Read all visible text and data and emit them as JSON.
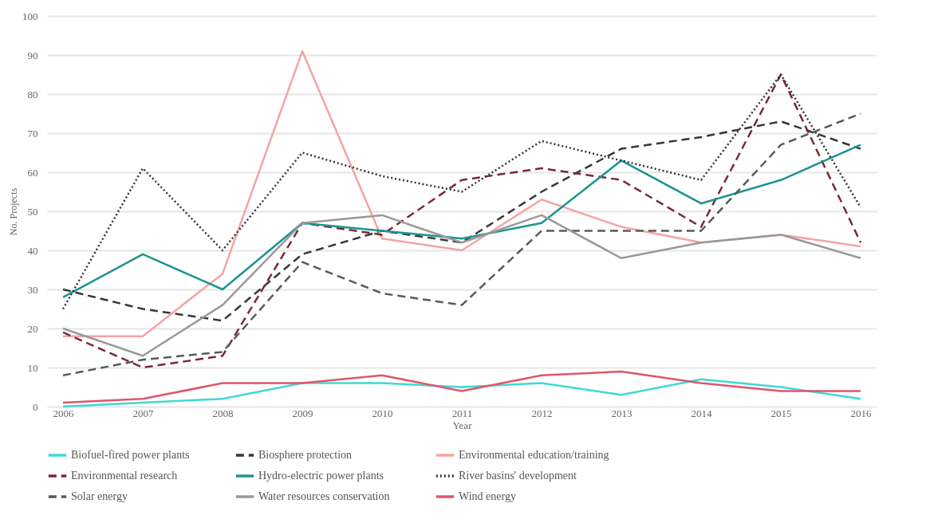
{
  "chart_data": {
    "type": "line",
    "xlabel": "Year",
    "ylabel": "No. Projects",
    "categories": [
      "2006",
      "2007",
      "2008",
      "2009",
      "2010",
      "2011",
      "2012",
      "2013",
      "2014",
      "2015",
      "2016"
    ],
    "ylim": [
      0,
      100
    ],
    "yticks": [
      0,
      10,
      20,
      30,
      40,
      50,
      60,
      70,
      80,
      90,
      100
    ],
    "grid": "y",
    "legend": "bottom",
    "marker": "none",
    "series": [
      {
        "name": "Biofuel-fired power plants",
        "color": "#3fd9d4",
        "line_style": "solid",
        "values": [
          0,
          1,
          2,
          6,
          6,
          5,
          6,
          3,
          7,
          5,
          2
        ]
      },
      {
        "name": "Biosphere protection",
        "color": "#383838",
        "line_style": "dashed",
        "values": [
          30,
          25,
          22,
          39,
          45,
          42,
          55,
          66,
          69,
          73,
          66
        ]
      },
      {
        "name": "Environmental education/training",
        "color": "#f4a3a6",
        "line_style": "solid",
        "values": [
          18,
          18,
          34,
          91,
          43,
          40,
          53,
          46,
          42,
          44,
          41
        ]
      },
      {
        "name": "Environmental research",
        "color": "#7a2a38",
        "line_style": "dashed",
        "values": [
          19,
          10,
          13,
          47,
          44,
          58,
          61,
          58,
          46,
          85,
          42
        ]
      },
      {
        "name": "Hydro-electric power plants",
        "color": "#1b9590",
        "line_style": "solid",
        "values": [
          28,
          39,
          30,
          47,
          45,
          43,
          47,
          63,
          52,
          58,
          67
        ]
      },
      {
        "name": "River basins' development",
        "color": "#333333",
        "line_style": "dotted",
        "values": [
          25,
          61,
          40,
          65,
          59,
          55,
          68,
          63,
          58,
          85,
          51
        ]
      },
      {
        "name": "Solar energy",
        "color": "#5a5a5a",
        "line_style": "dashed",
        "values": [
          8,
          12,
          14,
          37,
          29,
          26,
          45,
          45,
          45,
          67,
          75
        ]
      },
      {
        "name": "Water resources conservation",
        "color": "#999999",
        "line_style": "solid",
        "values": [
          20,
          13,
          26,
          47,
          49,
          42,
          49,
          38,
          42,
          44,
          38
        ]
      },
      {
        "name": "Wind energy",
        "color": "#e0566a",
        "line_style": "solid",
        "values": [
          1,
          2,
          6,
          6,
          8,
          4,
          8,
          9,
          6,
          4,
          4
        ]
      }
    ]
  }
}
